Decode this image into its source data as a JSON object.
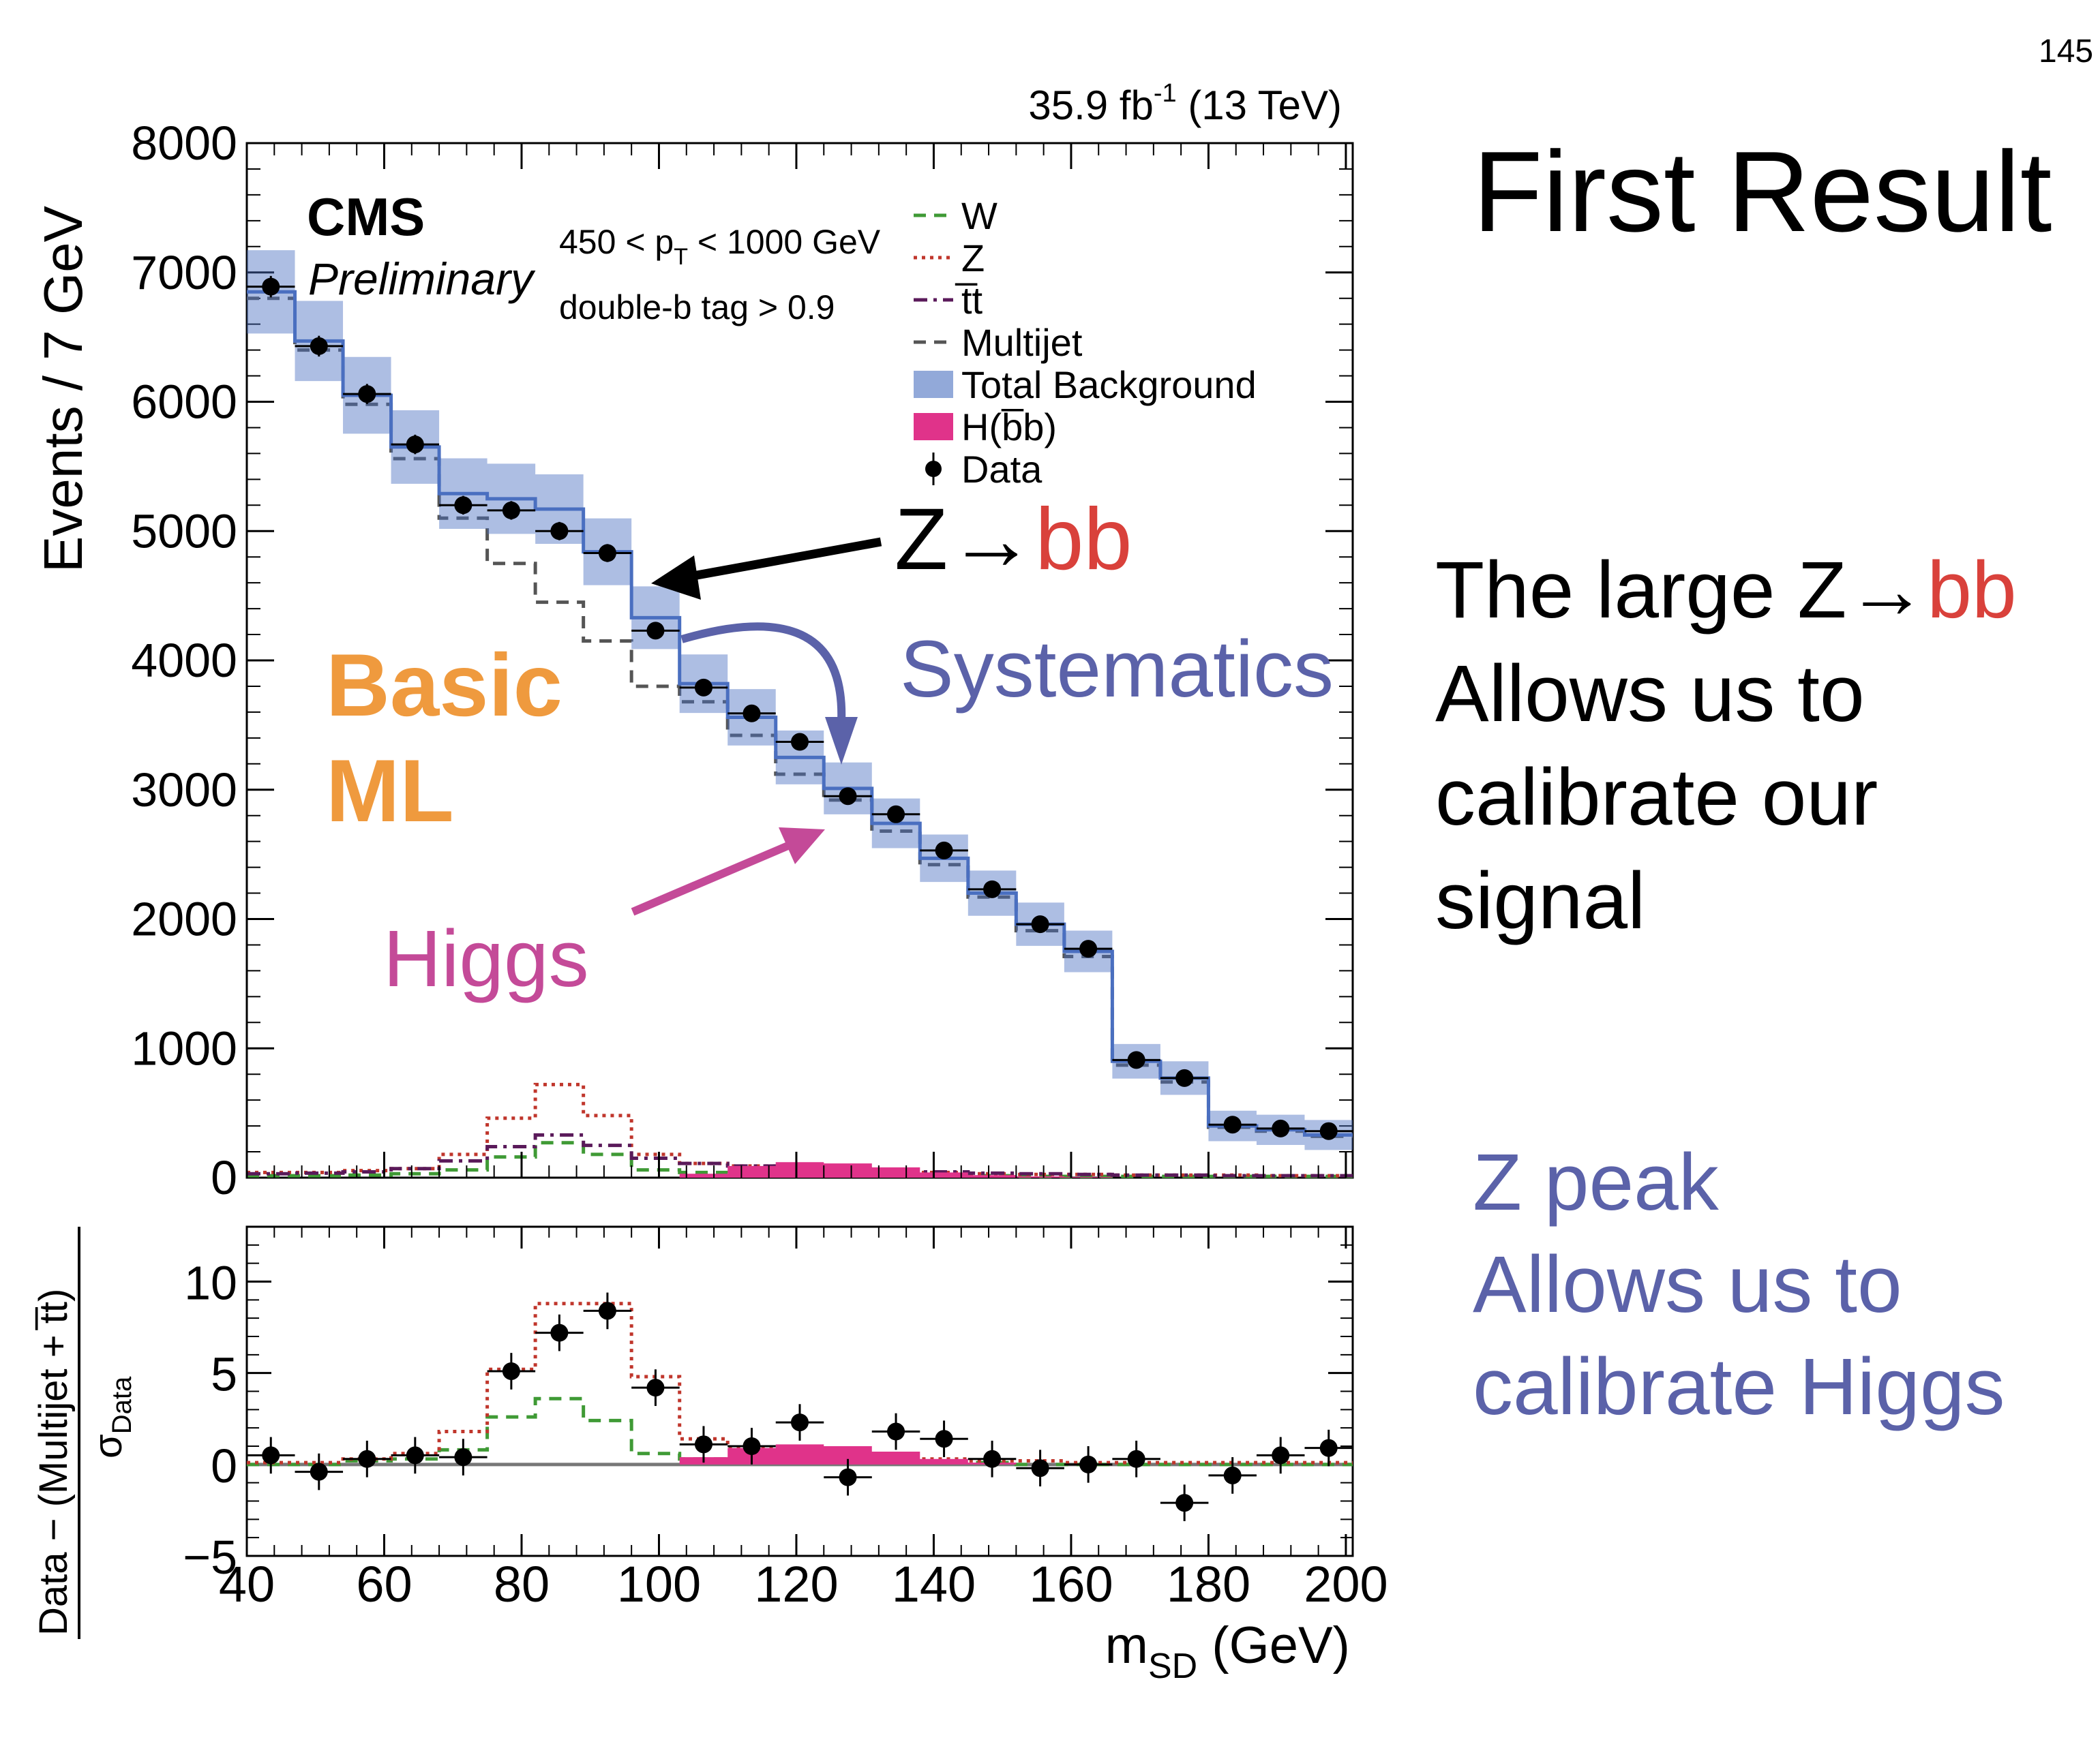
{
  "slide": {
    "number": "145",
    "title": "First Result",
    "text_lines": [
      "The large Z→",
      "Allows us to",
      "calibrate our",
      "signal"
    ],
    "text_red_suffix": "bb",
    "peak_lines": [
      "Z peak",
      "Allows us to",
      "calibrate Higgs"
    ]
  },
  "colors": {
    "W": "#3f9a35",
    "Z": "#c0362c",
    "ttbar": "#5a1a5a",
    "multijet": "#555555",
    "total_background": "#4a6fc0",
    "higgs": "#e0338a",
    "data": "#000000",
    "annot_orange": "#ef9a3e",
    "annot_blue": "#5b62a9",
    "annot_magenta": "#c44a98",
    "annot_red": "#d9413b"
  },
  "chart_data": {
    "type": "line",
    "bin_edges": [
      40,
      47,
      54,
      61,
      68,
      75,
      82,
      89,
      96,
      103,
      110,
      117,
      124,
      131,
      138,
      145,
      152,
      159,
      166,
      173,
      180,
      187,
      194,
      201
    ],
    "xlim": [
      40,
      201
    ],
    "xlabel": "m",
    "xlabel_sub": "SD",
    "xlabel_unit": " (GeV)",
    "x_ticks": [
      40,
      60,
      80,
      100,
      120,
      140,
      160,
      180,
      200
    ],
    "lumi_label": "35.9 fb",
    "lumi_sup": "-1",
    "lumi_tail": " (13 TeV)",
    "cms_label": "CMS",
    "prelim_label": "Preliminary",
    "cut1_a": "450 < p",
    "cut1_sub": "T",
    "cut1_b": " < 1000 GeV",
    "cut2": "double-b tag > 0.9",
    "main": {
      "ylabel": "Events / 7 GeV",
      "ylim": [
        0,
        8000
      ],
      "y_ticks": [
        0,
        1000,
        2000,
        3000,
        4000,
        5000,
        6000,
        7000,
        8000
      ],
      "series": [
        {
          "name": "W",
          "style": "dashed",
          "values": [
            15,
            15,
            20,
            30,
            60,
            160,
            270,
            180,
            60,
            40,
            30,
            25,
            20,
            20,
            15,
            15,
            10,
            10,
            10,
            10,
            10,
            10,
            10
          ]
        },
        {
          "name": "Z",
          "style": "dotted",
          "values": [
            40,
            40,
            55,
            70,
            180,
            460,
            720,
            480,
            180,
            110,
            90,
            70,
            60,
            50,
            40,
            30,
            25,
            25,
            20,
            20,
            20,
            15,
            15
          ]
        },
        {
          "name": "t̅t",
          "style": "dashdot",
          "values": [
            30,
            35,
            45,
            70,
            130,
            240,
            330,
            250,
            150,
            110,
            90,
            80,
            70,
            60,
            45,
            35,
            30,
            25,
            20,
            20,
            15,
            15,
            15
          ]
        },
        {
          "name": "Multijet",
          "style": "dashed",
          "values": [
            6800,
            6400,
            5980,
            5560,
            5100,
            4750,
            4450,
            4150,
            3800,
            3680,
            3420,
            3120,
            2920,
            2680,
            2420,
            2170,
            1910,
            1710,
            870,
            740,
            390,
            360,
            320
          ]
        },
        {
          "name": "Total Background",
          "style": "band",
          "values": [
            6850,
            6470,
            6050,
            5650,
            5290,
            5250,
            5170,
            4840,
            4330,
            3820,
            3560,
            3250,
            3010,
            2740,
            2470,
            2200,
            1960,
            1750,
            900,
            770,
            400,
            370,
            330
          ]
        },
        {
          "name": "H(b̅b)",
          "style": "filled",
          "values": [
            0,
            0,
            0,
            0,
            0,
            0,
            0,
            0,
            0,
            30,
            90,
            120,
            110,
            80,
            40,
            20,
            10,
            5,
            0,
            0,
            0,
            0,
            0
          ]
        }
      ],
      "data_points": {
        "name": "Data",
        "values": [
          6890,
          6430,
          6060,
          5670,
          5200,
          5160,
          5000,
          4830,
          4230,
          3790,
          3590,
          3370,
          2950,
          2810,
          2530,
          2230,
          1960,
          1770,
          910,
          770,
          410,
          380,
          360
        ]
      }
    },
    "ratio": {
      "ylabel_num": "Data − (Multijet + t̅t)",
      "ylabel_den": "σ",
      "ylabel_den_sub": "Data",
      "ylim": [
        -5,
        13
      ],
      "y_ticks": [
        -5,
        0,
        5,
        10
      ],
      "series": [
        {
          "name": "W",
          "style": "dashed",
          "values": [
            0,
            0,
            0.2,
            0.3,
            0.8,
            2.6,
            3.6,
            2.4,
            0.6,
            0.3,
            0.2,
            0.2,
            0.1,
            0.1,
            0.1,
            0.1,
            0,
            0,
            0,
            0,
            0,
            0,
            0
          ]
        },
        {
          "name": "Z",
          "style": "dotted",
          "values": [
            0.1,
            0.1,
            0.3,
            0.6,
            1.8,
            5.2,
            8.8,
            8.8,
            4.8,
            1.4,
            0.9,
            0.7,
            0.5,
            0.4,
            0.3,
            0.2,
            0.2,
            0.1,
            0.1,
            0.1,
            0.1,
            0.1,
            0.1
          ]
        },
        {
          "name": "H(b̅b)",
          "style": "filled",
          "values": [
            0,
            0,
            0,
            0,
            0,
            0,
            0,
            0,
            0,
            0.4,
            0.9,
            1.1,
            1.0,
            0.7,
            0.3,
            0.1,
            0,
            0,
            0,
            0,
            0,
            0,
            0
          ]
        }
      ],
      "data_points": {
        "name": "Data",
        "values": [
          0.5,
          -0.4,
          0.3,
          0.5,
          0.4,
          5.1,
          7.2,
          8.4,
          4.2,
          1.1,
          1.0,
          2.3,
          -0.7,
          1.8,
          1.4,
          0.3,
          -0.2,
          -0.0,
          0.3,
          -2.1,
          -0.6,
          0.5,
          0.9
        ]
      }
    },
    "legend": {
      "placement": "top-right",
      "entries": [
        {
          "label": "W",
          "style": "dashed",
          "color_key": "W"
        },
        {
          "label": "Z",
          "style": "dotted",
          "color_key": "Z"
        },
        {
          "label": "t̅t",
          "style": "dashdot",
          "color_key": "ttbar"
        },
        {
          "label": "Multijet",
          "style": "dashed",
          "color_key": "multijet"
        },
        {
          "label": "Total Background",
          "style": "band",
          "color_key": "total_background"
        },
        {
          "label": "H(b̅b)",
          "style": "filled",
          "color_key": "higgs"
        },
        {
          "label": "Data",
          "style": "marker",
          "color_key": "data"
        }
      ]
    },
    "annotations": {
      "zbb_z": "Z→",
      "zbb_bb": "bb",
      "systematics": "Systematics",
      "basic": "Basic",
      "ml": "ML",
      "higgs": "Higgs"
    }
  }
}
